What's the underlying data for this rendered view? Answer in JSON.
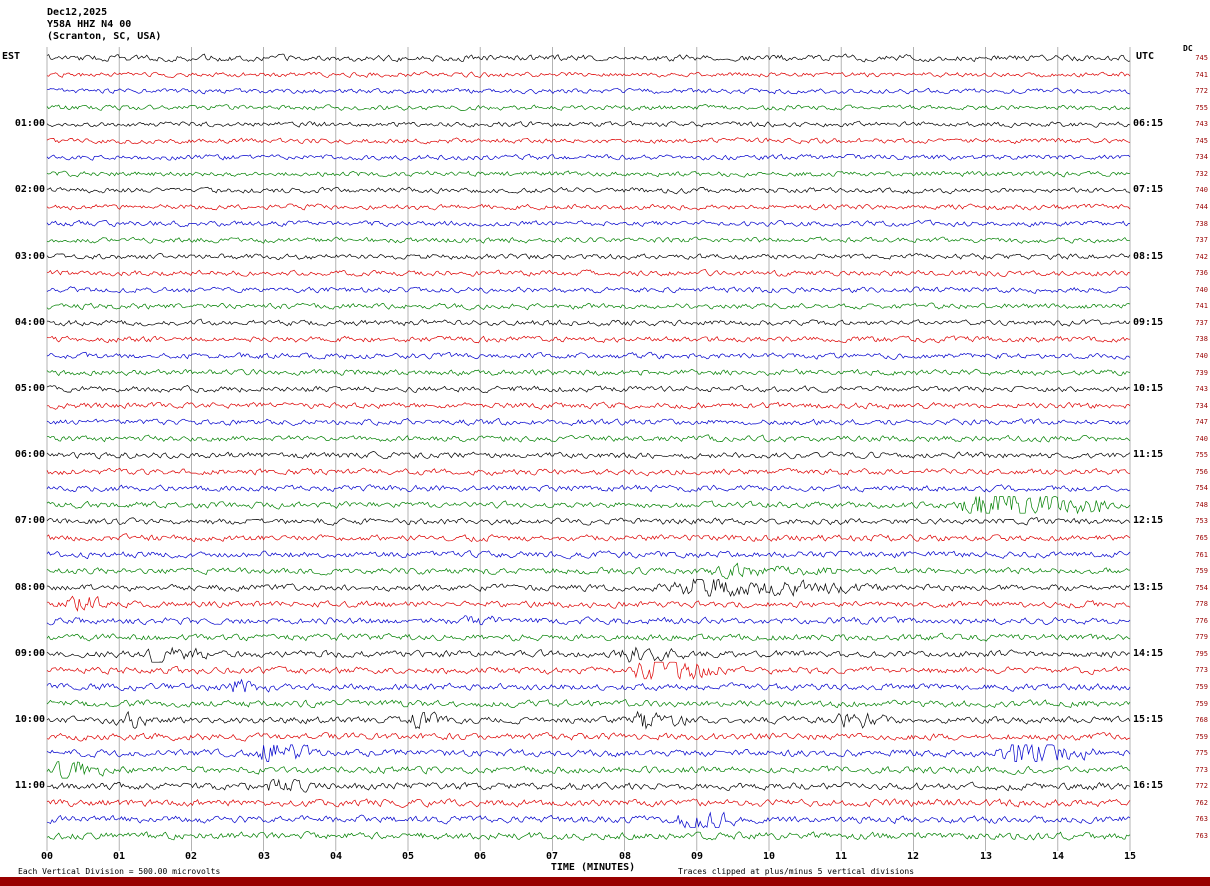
{
  "header": {
    "date": "Dec12,2025",
    "station": "Y58A HHZ N4 00",
    "location": "(Scranton, SC, USA)",
    "left_tz": "EST",
    "right_tz": "UTC",
    "dc_label": "DC"
  },
  "footer": {
    "division_note": "Each Vertical Division =  500.00 microvolts",
    "xaxis_title": "TIME (MINUTES)",
    "clip_note": "Traces clipped at plus/minus 5 vertical divisions"
  },
  "colors": {
    "grid": "#a0a0a0",
    "banner": "#990000",
    "dc_value_color": "#990000",
    "text": "#000000"
  },
  "chart_data": {
    "type": "line",
    "subtype": "helicorder",
    "title": "Y58A HHZ N4 00 — Dec12,2025 — (Scranton, SC, USA)",
    "xlabel": "TIME (MINUTES)",
    "x_range_minutes": [
      0,
      15
    ],
    "x_ticks": [
      "00",
      "01",
      "02",
      "03",
      "04",
      "05",
      "06",
      "07",
      "08",
      "09",
      "10",
      "11",
      "12",
      "13",
      "14",
      "15"
    ],
    "num_rows": 48,
    "row_duration_minutes": 15,
    "row_color_cycle": [
      "#000000",
      "#dd0000",
      "#0000cc",
      "#008000"
    ],
    "left_hour_labels": [
      "01:00",
      "02:00",
      "03:00",
      "04:00",
      "05:00",
      "06:00",
      "07:00",
      "08:00",
      "09:00",
      "10:00",
      "11:00"
    ],
    "right_hour_labels": [
      "06:15",
      "07:15",
      "08:15",
      "09:15",
      "10:15",
      "11:15",
      "12:15",
      "13:15",
      "14:15",
      "15:15",
      "16:15"
    ],
    "row_dc_offsets": [
      745,
      741,
      772,
      755,
      743,
      745,
      734,
      732,
      740,
      744,
      738,
      737,
      742,
      736,
      740,
      741,
      737,
      738,
      740,
      739,
      743,
      734,
      747,
      740,
      755,
      756,
      754,
      748,
      753,
      765,
      761,
      759,
      754,
      778,
      776,
      779,
      795,
      773,
      759,
      759,
      768,
      759,
      775,
      773,
      772,
      762,
      763,
      763
    ],
    "noise_description": "Continuous ambient seismic noise on every 15-minute row; amplitude grows slightly through the day; traces clipped at plus/minus 5 vertical divisions (500 microvolts per division).",
    "events": [
      {
        "row": 27,
        "start_min": 12.6,
        "end_min": 14.7,
        "amp": 9
      },
      {
        "row": 31,
        "start_min": 9.0,
        "end_min": 11.2,
        "amp": 1.6
      },
      {
        "row": 32,
        "start_min": 8.4,
        "end_min": 11.6,
        "amp": 3.2
      },
      {
        "row": 33,
        "start_min": 0.25,
        "end_min": 0.75,
        "amp": 5
      },
      {
        "row": 34,
        "start_min": 5.7,
        "end_min": 6.3,
        "amp": 2
      },
      {
        "row": 36,
        "start_min": 1.3,
        "end_min": 2.3,
        "amp": 2.6
      },
      {
        "row": 36,
        "start_min": 7.9,
        "end_min": 8.9,
        "amp": 2.2
      },
      {
        "row": 37,
        "start_min": 8.1,
        "end_min": 9.4,
        "amp": 6
      },
      {
        "row": 38,
        "start_min": 2.5,
        "end_min": 3.1,
        "amp": 2.2
      },
      {
        "row": 40,
        "start_min": 0.9,
        "end_min": 1.6,
        "amp": 3
      },
      {
        "row": 40,
        "start_min": 5.0,
        "end_min": 5.6,
        "amp": 2.4
      },
      {
        "row": 40,
        "start_min": 8.1,
        "end_min": 8.9,
        "amp": 3.2
      },
      {
        "row": 40,
        "start_min": 10.9,
        "end_min": 11.7,
        "amp": 2.8
      },
      {
        "row": 42,
        "start_min": 2.9,
        "end_min": 3.7,
        "amp": 5.5
      },
      {
        "row": 42,
        "start_min": 13.1,
        "end_min": 14.5,
        "amp": 5.5
      },
      {
        "row": 43,
        "start_min": 0.1,
        "end_min": 0.8,
        "amp": 4
      },
      {
        "row": 44,
        "start_min": 3.0,
        "end_min": 3.7,
        "amp": 2.2
      },
      {
        "row": 46,
        "start_min": 8.7,
        "end_min": 9.6,
        "amp": 3.2
      }
    ]
  }
}
